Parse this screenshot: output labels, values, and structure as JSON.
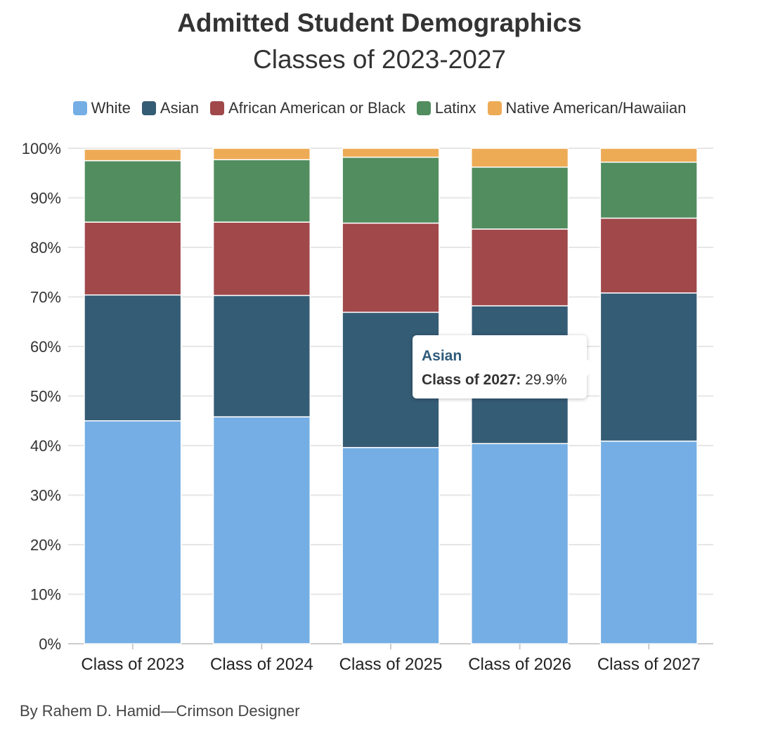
{
  "chart_data": {
    "type": "bar",
    "stacked": true,
    "title": "Admitted Student Demographics",
    "subtitle": "Classes of 2023-2027",
    "categories": [
      "Class of 2023",
      "Class of 2024",
      "Class of 2025",
      "Class of 2026",
      "Class of 2027"
    ],
    "series": [
      {
        "name": "White",
        "color": "#74aee4",
        "values": [
          45.0,
          45.8,
          39.6,
          40.4,
          40.9
        ]
      },
      {
        "name": "Asian",
        "color": "#355c75",
        "values": [
          25.4,
          24.5,
          27.3,
          27.8,
          29.9
        ]
      },
      {
        "name": "African American or Black",
        "color": "#a0484a",
        "values": [
          14.7,
          14.8,
          18.0,
          15.5,
          15.1
        ]
      },
      {
        "name": "Latinx",
        "color": "#528d5f",
        "values": [
          12.4,
          12.6,
          13.3,
          12.5,
          11.3
        ]
      },
      {
        "name": "Native American/Hawaiian",
        "color": "#eeab56",
        "values": [
          2.3,
          2.3,
          1.8,
          3.8,
          2.8
        ]
      }
    ],
    "yticks": [
      "0%",
      "10%",
      "20%",
      "30%",
      "40%",
      "50%",
      "60%",
      "70%",
      "80%",
      "90%",
      "100%"
    ],
    "ylim": [
      0,
      100
    ],
    "grid": true,
    "legend_position": "top-center"
  },
  "tooltip": {
    "series": "Asian",
    "label": "Class of 2027:",
    "value": "29.9%"
  },
  "credit": "By Rahem D. Hamid—Crimson Designer"
}
